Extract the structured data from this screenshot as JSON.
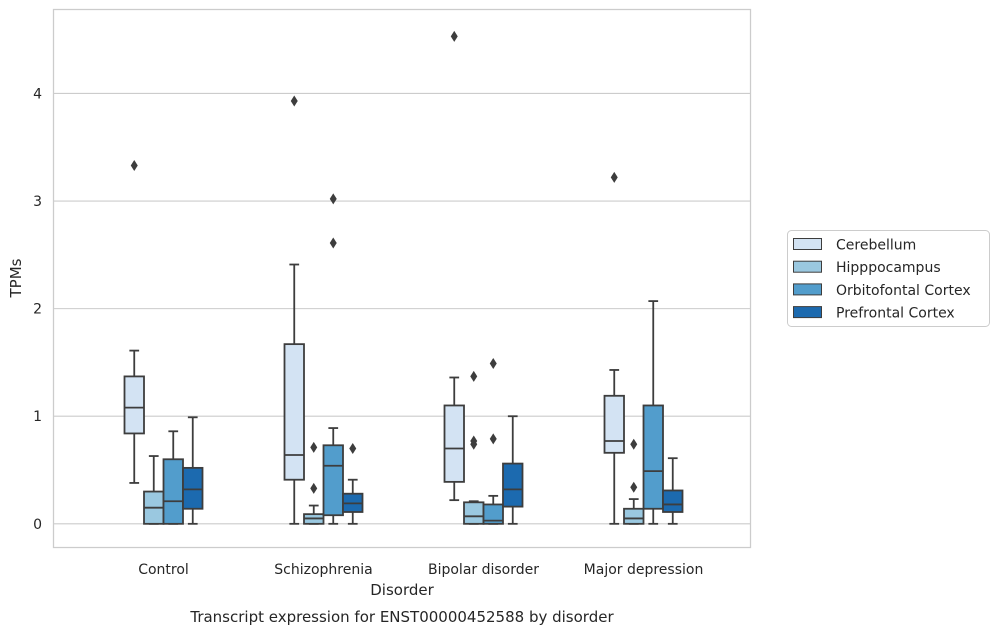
{
  "caption": "Transcript expression for ENST00000452588 by disorder",
  "chart_data": {
    "type": "box",
    "xlabel": "Disorder",
    "ylabel": "TPMs",
    "ylim": [
      -0.22,
      4.78
    ],
    "yticks": [
      0,
      1,
      2,
      3,
      4
    ],
    "grid": "horizontal",
    "legend_position": "right",
    "categories": [
      "Control",
      "Schizophrenia",
      "Bipolar disorder",
      "Major depression"
    ],
    "series": [
      {
        "name": "Cerebellum",
        "color": "#d3e3f3",
        "boxes": [
          {
            "whislo": 0.38,
            "q1": 0.84,
            "med": 1.08,
            "q3": 1.37,
            "whishi": 1.61,
            "fliers": [
              3.33
            ]
          },
          {
            "whislo": 0.0,
            "q1": 0.41,
            "med": 0.64,
            "q3": 1.67,
            "whishi": 2.41,
            "fliers": [
              3.93
            ]
          },
          {
            "whislo": 0.22,
            "q1": 0.39,
            "med": 0.7,
            "q3": 1.1,
            "whishi": 1.36,
            "fliers": [
              4.53
            ]
          },
          {
            "whislo": 0.0,
            "q1": 0.66,
            "med": 0.77,
            "q3": 1.19,
            "whishi": 1.43,
            "fliers": [
              3.22
            ]
          }
        ]
      },
      {
        "name": "Hipppocampus",
        "color": "#9ac8e0",
        "boxes": [
          {
            "whislo": 0.0,
            "q1": 0.0,
            "med": 0.15,
            "q3": 0.3,
            "whishi": 0.63,
            "fliers": []
          },
          {
            "whislo": 0.0,
            "q1": 0.0,
            "med": 0.05,
            "q3": 0.09,
            "whishi": 0.17,
            "fliers": [
              0.33,
              0.71
            ]
          },
          {
            "whislo": 0.0,
            "q1": 0.0,
            "med": 0.07,
            "q3": 0.2,
            "whishi": 0.21,
            "fliers": [
              0.74,
              0.77,
              1.37
            ]
          },
          {
            "whislo": 0.0,
            "q1": 0.0,
            "med": 0.05,
            "q3": 0.14,
            "whishi": 0.23,
            "fliers": [
              0.34,
              0.74
            ]
          }
        ]
      },
      {
        "name": "Orbitofontal Cortex",
        "color": "#529dcc",
        "boxes": [
          {
            "whislo": 0.0,
            "q1": 0.0,
            "med": 0.21,
            "q3": 0.6,
            "whishi": 0.86,
            "fliers": []
          },
          {
            "whislo": 0.0,
            "q1": 0.08,
            "med": 0.54,
            "q3": 0.73,
            "whishi": 0.89,
            "fliers": [
              2.61,
              3.02
            ]
          },
          {
            "whislo": 0.0,
            "q1": 0.0,
            "med": 0.03,
            "q3": 0.18,
            "whishi": 0.26,
            "fliers": [
              0.79,
              1.49
            ]
          },
          {
            "whislo": 0.0,
            "q1": 0.14,
            "med": 0.49,
            "q3": 1.1,
            "whishi": 2.07,
            "fliers": []
          }
        ]
      },
      {
        "name": "Prefrontal Cortex",
        "color": "#1c6aaf",
        "boxes": [
          {
            "whislo": 0.0,
            "q1": 0.14,
            "med": 0.32,
            "q3": 0.52,
            "whishi": 0.99,
            "fliers": []
          },
          {
            "whislo": 0.0,
            "q1": 0.11,
            "med": 0.19,
            "q3": 0.28,
            "whishi": 0.41,
            "fliers": [
              0.7
            ]
          },
          {
            "whislo": 0.0,
            "q1": 0.16,
            "med": 0.32,
            "q3": 0.56,
            "whishi": 1.0,
            "fliers": []
          },
          {
            "whislo": 0.0,
            "q1": 0.11,
            "med": 0.18,
            "q3": 0.31,
            "whishi": 0.61,
            "fliers": []
          }
        ]
      }
    ]
  }
}
